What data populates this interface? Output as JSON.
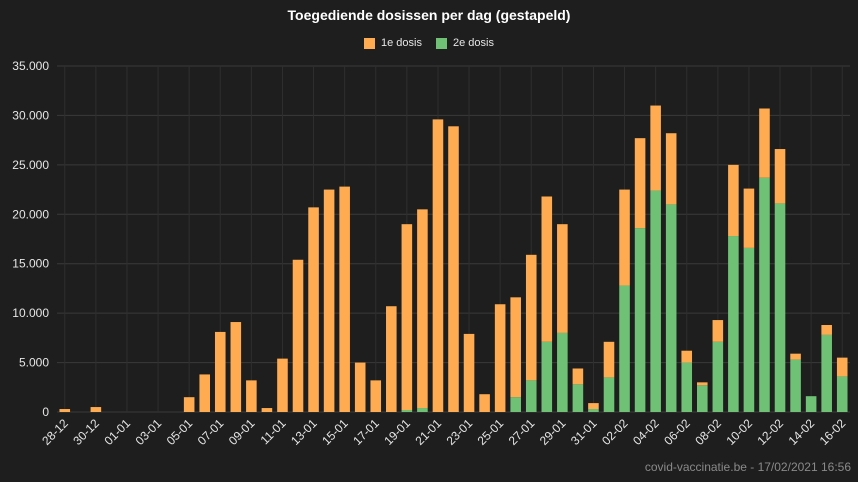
{
  "chart_data": {
    "type": "bar",
    "stacked": true,
    "title": "Toegediende dosissen per dag (gestapeld)",
    "categories": [
      "28-12",
      "29-12",
      "30-12",
      "31-12",
      "01-01",
      "02-01",
      "03-01",
      "04-01",
      "05-01",
      "06-01",
      "07-01",
      "08-01",
      "09-01",
      "10-01",
      "11-01",
      "12-01",
      "13-01",
      "14-01",
      "15-01",
      "16-01",
      "17-01",
      "18-01",
      "19-01",
      "20-01",
      "21-01",
      "22-01",
      "23-01",
      "24-01",
      "25-01",
      "26-01",
      "27-01",
      "28-01",
      "29-01",
      "30-01",
      "31-01",
      "01-02",
      "02-02",
      "03-02",
      "04-02",
      "05-02",
      "06-02",
      "07-02",
      "08-02",
      "09-02",
      "10-02",
      "11-02",
      "12-02",
      "13-02",
      "14-02",
      "15-02",
      "16-02"
    ],
    "tick_labels": [
      "28-12",
      "30-12",
      "01-01",
      "03-01",
      "05-01",
      "07-01",
      "09-01",
      "11-01",
      "13-01",
      "15-01",
      "17-01",
      "19-01",
      "21-01",
      "23-01",
      "25-01",
      "27-01",
      "29-01",
      "31-01",
      "02-02",
      "04-02",
      "06-02",
      "08-02",
      "10-02",
      "12-02",
      "14-02",
      "16-02"
    ],
    "series": [
      {
        "name": "1e dosis",
        "color": "#ffab51",
        "values": [
          300,
          0,
          500,
          0,
          0,
          0,
          0,
          0,
          1500,
          3800,
          8100,
          9100,
          3200,
          400,
          5400,
          15400,
          20700,
          22500,
          22800,
          5000,
          3200,
          10700,
          18800,
          20100,
          29600,
          28900,
          7900,
          1800,
          10900,
          10100,
          12700,
          14700,
          11000,
          1600,
          600,
          3600,
          9700,
          9100,
          8600,
          7200,
          1200,
          300,
          2200,
          7200,
          6000,
          7000,
          5500,
          600,
          0,
          1000,
          1900
        ]
      },
      {
        "name": "2e dosis",
        "color": "#6fc275",
        "values": [
          0,
          0,
          0,
          0,
          0,
          0,
          0,
          0,
          0,
          0,
          0,
          0,
          0,
          0,
          0,
          0,
          0,
          0,
          0,
          0,
          0,
          0,
          200,
          400,
          0,
          0,
          0,
          0,
          0,
          1500,
          3200,
          7100,
          8000,
          2800,
          300,
          3500,
          12800,
          18600,
          22400,
          21000,
          5000,
          2700,
          7100,
          17800,
          16600,
          23700,
          21100,
          5300,
          1600,
          7800,
          3600
        ]
      }
    ],
    "ylim": [
      0,
      35000
    ],
    "yticks": [
      0,
      5000,
      10000,
      15000,
      20000,
      25000,
      30000,
      35000
    ],
    "ytick_labels": [
      "0",
      "5.000",
      "10.000",
      "15.000",
      "20.000",
      "25.000",
      "30.000",
      "35.000"
    ],
    "xlabel": "",
    "ylabel": "",
    "legend_position": "top-center",
    "grid": true
  },
  "footer": "covid-vaccinatie.be - 17/02/2021 16:56"
}
